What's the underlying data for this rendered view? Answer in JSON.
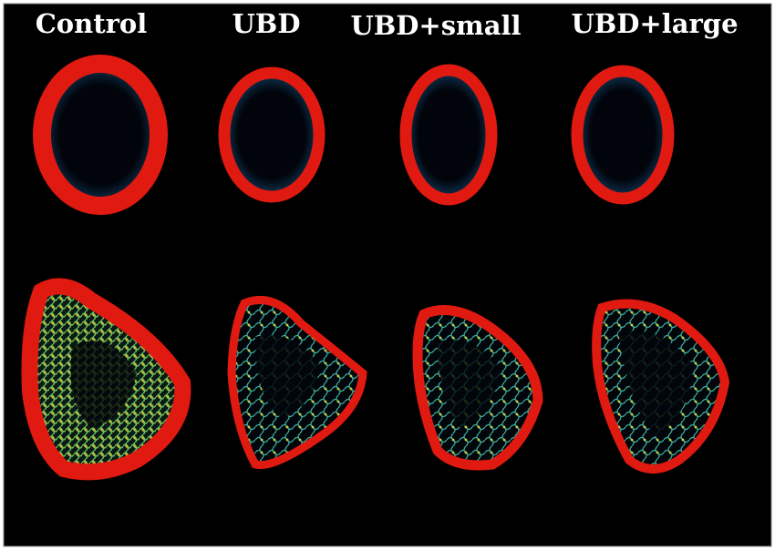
{
  "labels": [
    "Control",
    "UBD",
    "UBD+small",
    "UBD+large"
  ]
}
